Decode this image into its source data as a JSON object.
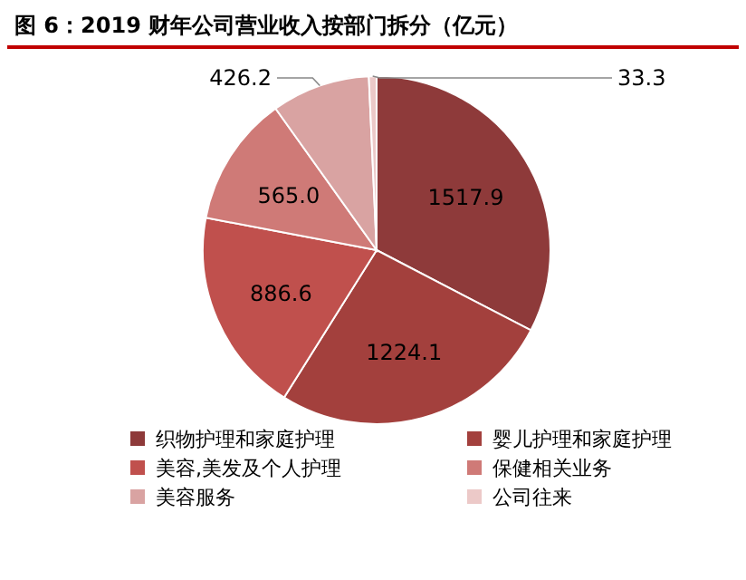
{
  "chart_data": {
    "type": "pie",
    "title": "图 6：2019 财年公司营业收入按部门拆分（亿元）",
    "categories": [
      "织物护理和家庭护理",
      "婴儿护理和家庭护理",
      "美容,美发及个人护理",
      "保健相关业务",
      "美容服务",
      "公司往来"
    ],
    "values": [
      1517.9,
      1224.1,
      886.6,
      565.0,
      426.2,
      33.3
    ],
    "value_labels": [
      "1517.9",
      "1224.1",
      "886.6",
      "565.0",
      "426.2",
      "33.3"
    ],
    "colors": [
      "#8e3a3a",
      "#a3403d",
      "#c0504d",
      "#cf7a77",
      "#d9a3a2",
      "#ecc9c8"
    ],
    "legend": "bottom"
  }
}
